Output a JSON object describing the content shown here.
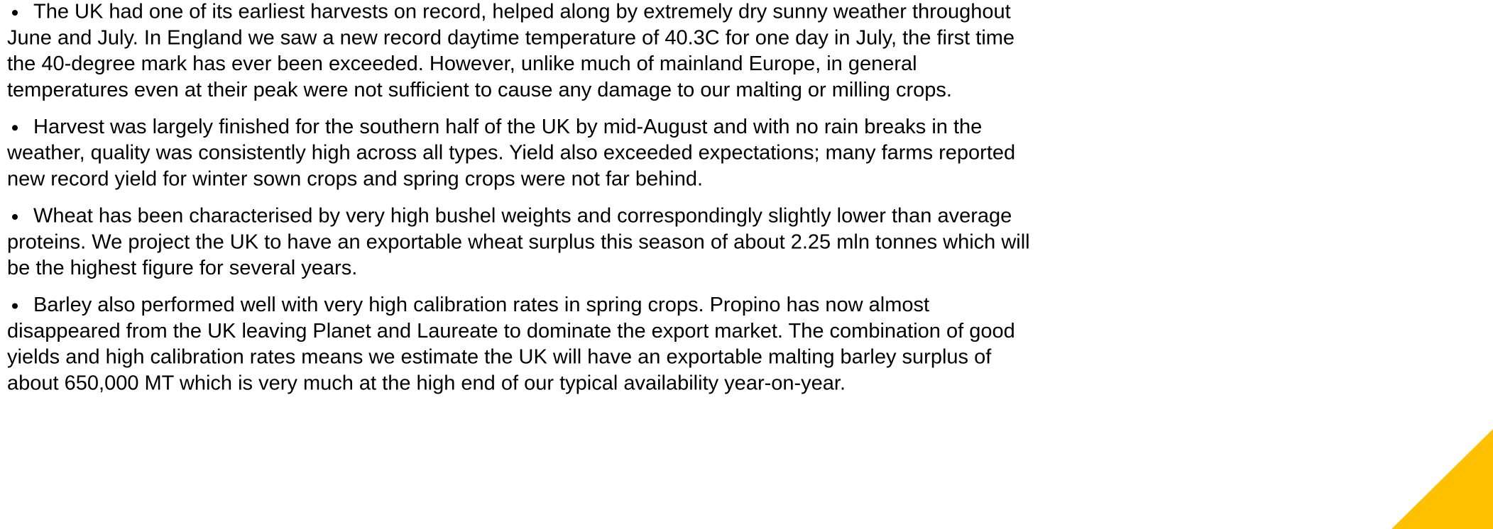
{
  "paragraphs": [
    {
      "lines": [
        "The UK had one of its earliest harvests on record, helped along by extremely dry sunny weather throughout",
        "June and July. In England we saw a new record daytime temperature of 40.3C for one day in July, the first time",
        "the 40-degree mark has ever been exceeded. However, unlike much of mainland Europe, in general",
        "temperatures even at their peak were not sufficient to cause any damage to our malting or milling crops."
      ]
    },
    {
      "lines": [
        "Harvest was largely finished for the southern half of the UK by mid-August and with no rain breaks in the",
        "weather, quality was consistently high across all types. Yield also exceeded expectations; many farms reported",
        "new record yield for winter sown crops and spring crops were not far behind."
      ]
    },
    {
      "lines": [
        "Wheat has been characterised by very high bushel weights and correspondingly slightly lower than average",
        "proteins. We project the UK to have an exportable wheat surplus this season of about 2.25 mln tonnes which will",
        "be the highest figure for several years."
      ]
    },
    {
      "lines": [
        "Barley also performed well with very high calibration rates in spring crops. Propino has now almost",
        "disappeared from the UK leaving Planet and Laureate to dominate the export market. The combination of good",
        "yields and high calibration rates means we estimate the UK will have an exportable malting barley surplus of",
        "about 650,000 MT which is very much at the high end of our typical availability year-on-year."
      ]
    }
  ]
}
